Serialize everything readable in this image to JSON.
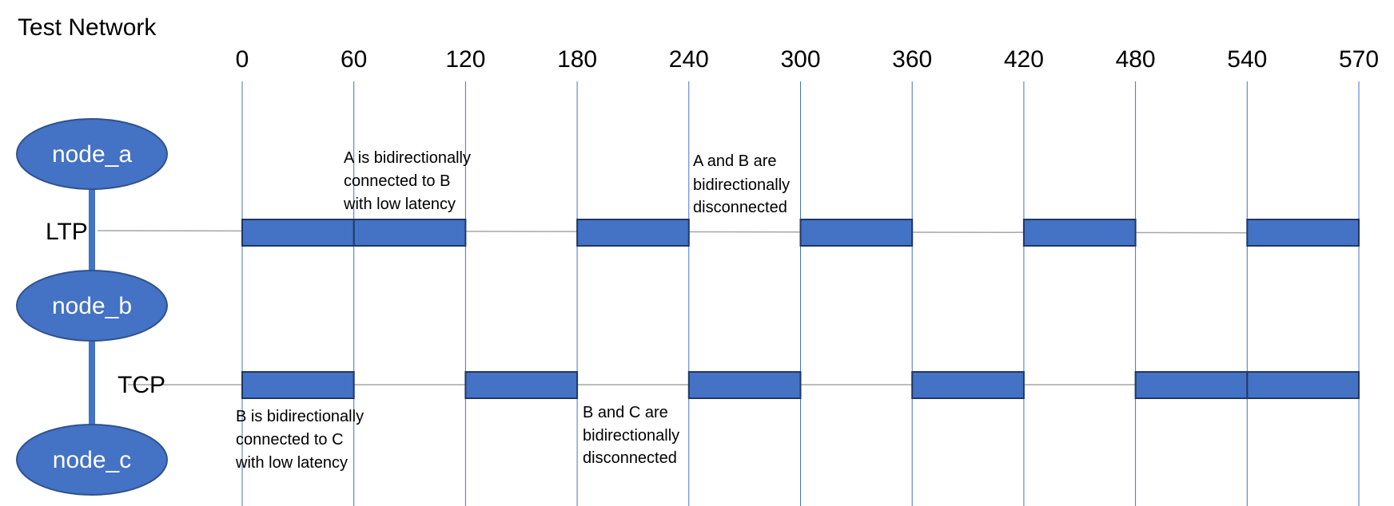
{
  "title": "Test Network",
  "time_ticks": [
    "0",
    "60",
    "120",
    "180",
    "240",
    "300",
    "360",
    "420",
    "480",
    "540",
    "570"
  ],
  "nodes": [
    "node_a",
    "node_b",
    "node_c"
  ],
  "links": [
    {
      "label": "LTP",
      "from": "node_a",
      "to": "node_b",
      "up_intervals": [
        [
          0,
          120
        ],
        [
          180,
          240
        ],
        [
          300,
          360
        ],
        [
          420,
          480
        ],
        [
          540,
          570
        ]
      ]
    },
    {
      "label": "TCP",
      "from": "node_b",
      "to": "node_c",
      "up_intervals": [
        [
          0,
          60
        ],
        [
          120,
          180
        ],
        [
          240,
          300
        ],
        [
          360,
          420
        ],
        [
          480,
          570
        ]
      ]
    }
  ],
  "annotations": {
    "a_connected": [
      "A is bidirectionally",
      "connected to B",
      "with low latency"
    ],
    "a_disconnected": [
      "A and B are",
      "bidirectionally",
      "disconnected"
    ],
    "b_connected": [
      "B is bidirectionally",
      "connected to C",
      "with low latency"
    ],
    "b_disconnected": [
      "B and C are",
      "bidirectionally",
      "disconnected"
    ]
  },
  "colors": {
    "node_fill": "#4472C4",
    "node_stroke": "#2F528F",
    "bar_fill": "#4472C4",
    "bar_stroke": "#1F3864",
    "gridline": "#4472C4",
    "link_line": "#A6A6A6"
  }
}
